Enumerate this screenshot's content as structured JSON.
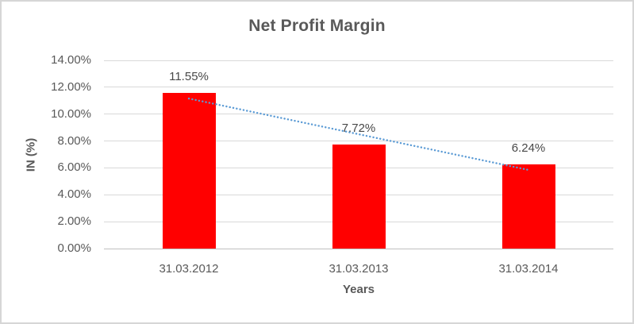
{
  "chart_data": {
    "type": "bar",
    "title": "Net Profit Margin",
    "xlabel": "Years",
    "ylabel": "IN (%)",
    "categories": [
      "31.03.2012",
      "31.03.2013",
      "31.03.2014"
    ],
    "values": [
      11.55,
      7.72,
      6.24
    ],
    "data_labels": [
      "11.55%",
      "7.72%",
      "6.24%"
    ],
    "y_tick_labels": [
      "14.00%",
      "12.00%",
      "10.00%",
      "8.00%",
      "6.00%",
      "4.00%",
      "2.00%",
      "0.00%"
    ],
    "y_tick_values": [
      14,
      12,
      10,
      8,
      6,
      4,
      2,
      0
    ],
    "ylim": [
      0,
      14
    ],
    "grid": true,
    "legend": "none",
    "trendline": {
      "type": "linear",
      "style": "dotted",
      "start_value": 11.16,
      "end_value": 5.85
    },
    "colors": {
      "bar": "#FF0000",
      "trendline": "#5B9BD5",
      "title_text": "#595959",
      "tick_text": "#595959",
      "data_label_text": "#484848",
      "gridline": "#D9D9D9",
      "axis_line": "#BFBFBF",
      "background": "#FFFFFF",
      "frame_border": "#D6D6D6"
    }
  }
}
